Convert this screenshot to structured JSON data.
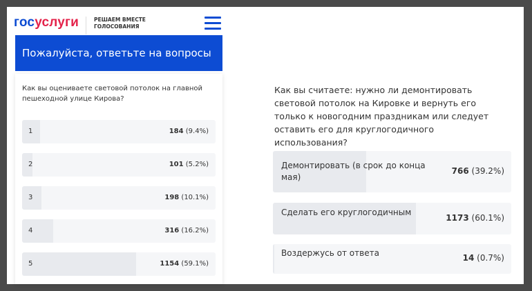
{
  "header": {
    "logo_part1": "гос",
    "logo_part2": "услуги",
    "slogan_line1": "РЕШАЕМ ВМЕСТЕ",
    "slogan_line2": "ГОЛОСОВАНИЯ",
    "menu_icon": "hamburger-icon"
  },
  "banner": {
    "title": "Пожалуйста, ответьте на вопросы"
  },
  "question1": {
    "text": "Как вы оцениваете световой потолок на главной пешеходной улице Кирова?",
    "options": [
      {
        "label": "1",
        "count": "184",
        "percent": "(9.4%)",
        "share": 9.4
      },
      {
        "label": "2",
        "count": "101",
        "percent": "(5.2%)",
        "share": 5.2
      },
      {
        "label": "3",
        "count": "198",
        "percent": "(10.1%)",
        "share": 10.1
      },
      {
        "label": "4",
        "count": "316",
        "percent": "(16.2%)",
        "share": 16.2
      },
      {
        "label": "5",
        "count": "1154",
        "percent": "(59.1%)",
        "share": 59.1
      }
    ]
  },
  "question2": {
    "text": "Как вы считаете: нужно ли демонтировать световой потолок на Кировке и вернуть его только к новогодним праздникам или следует оставить его для круглогодичного использования?",
    "options": [
      {
        "label": "Демонтировать (в срок до конца мая)",
        "count": "766",
        "percent": "(39.2%)",
        "share": 39.2
      },
      {
        "label": "Сделать его круглогодичным",
        "count": "1173",
        "percent": "(60.1%)",
        "share": 60.1
      },
      {
        "label": "Воздержусь от ответа",
        "count": "14",
        "percent": "(0.7%)",
        "share": 0.7
      }
    ]
  },
  "colors": {
    "brand_blue": "#0d4cd3",
    "brand_red": "#e4224a"
  }
}
